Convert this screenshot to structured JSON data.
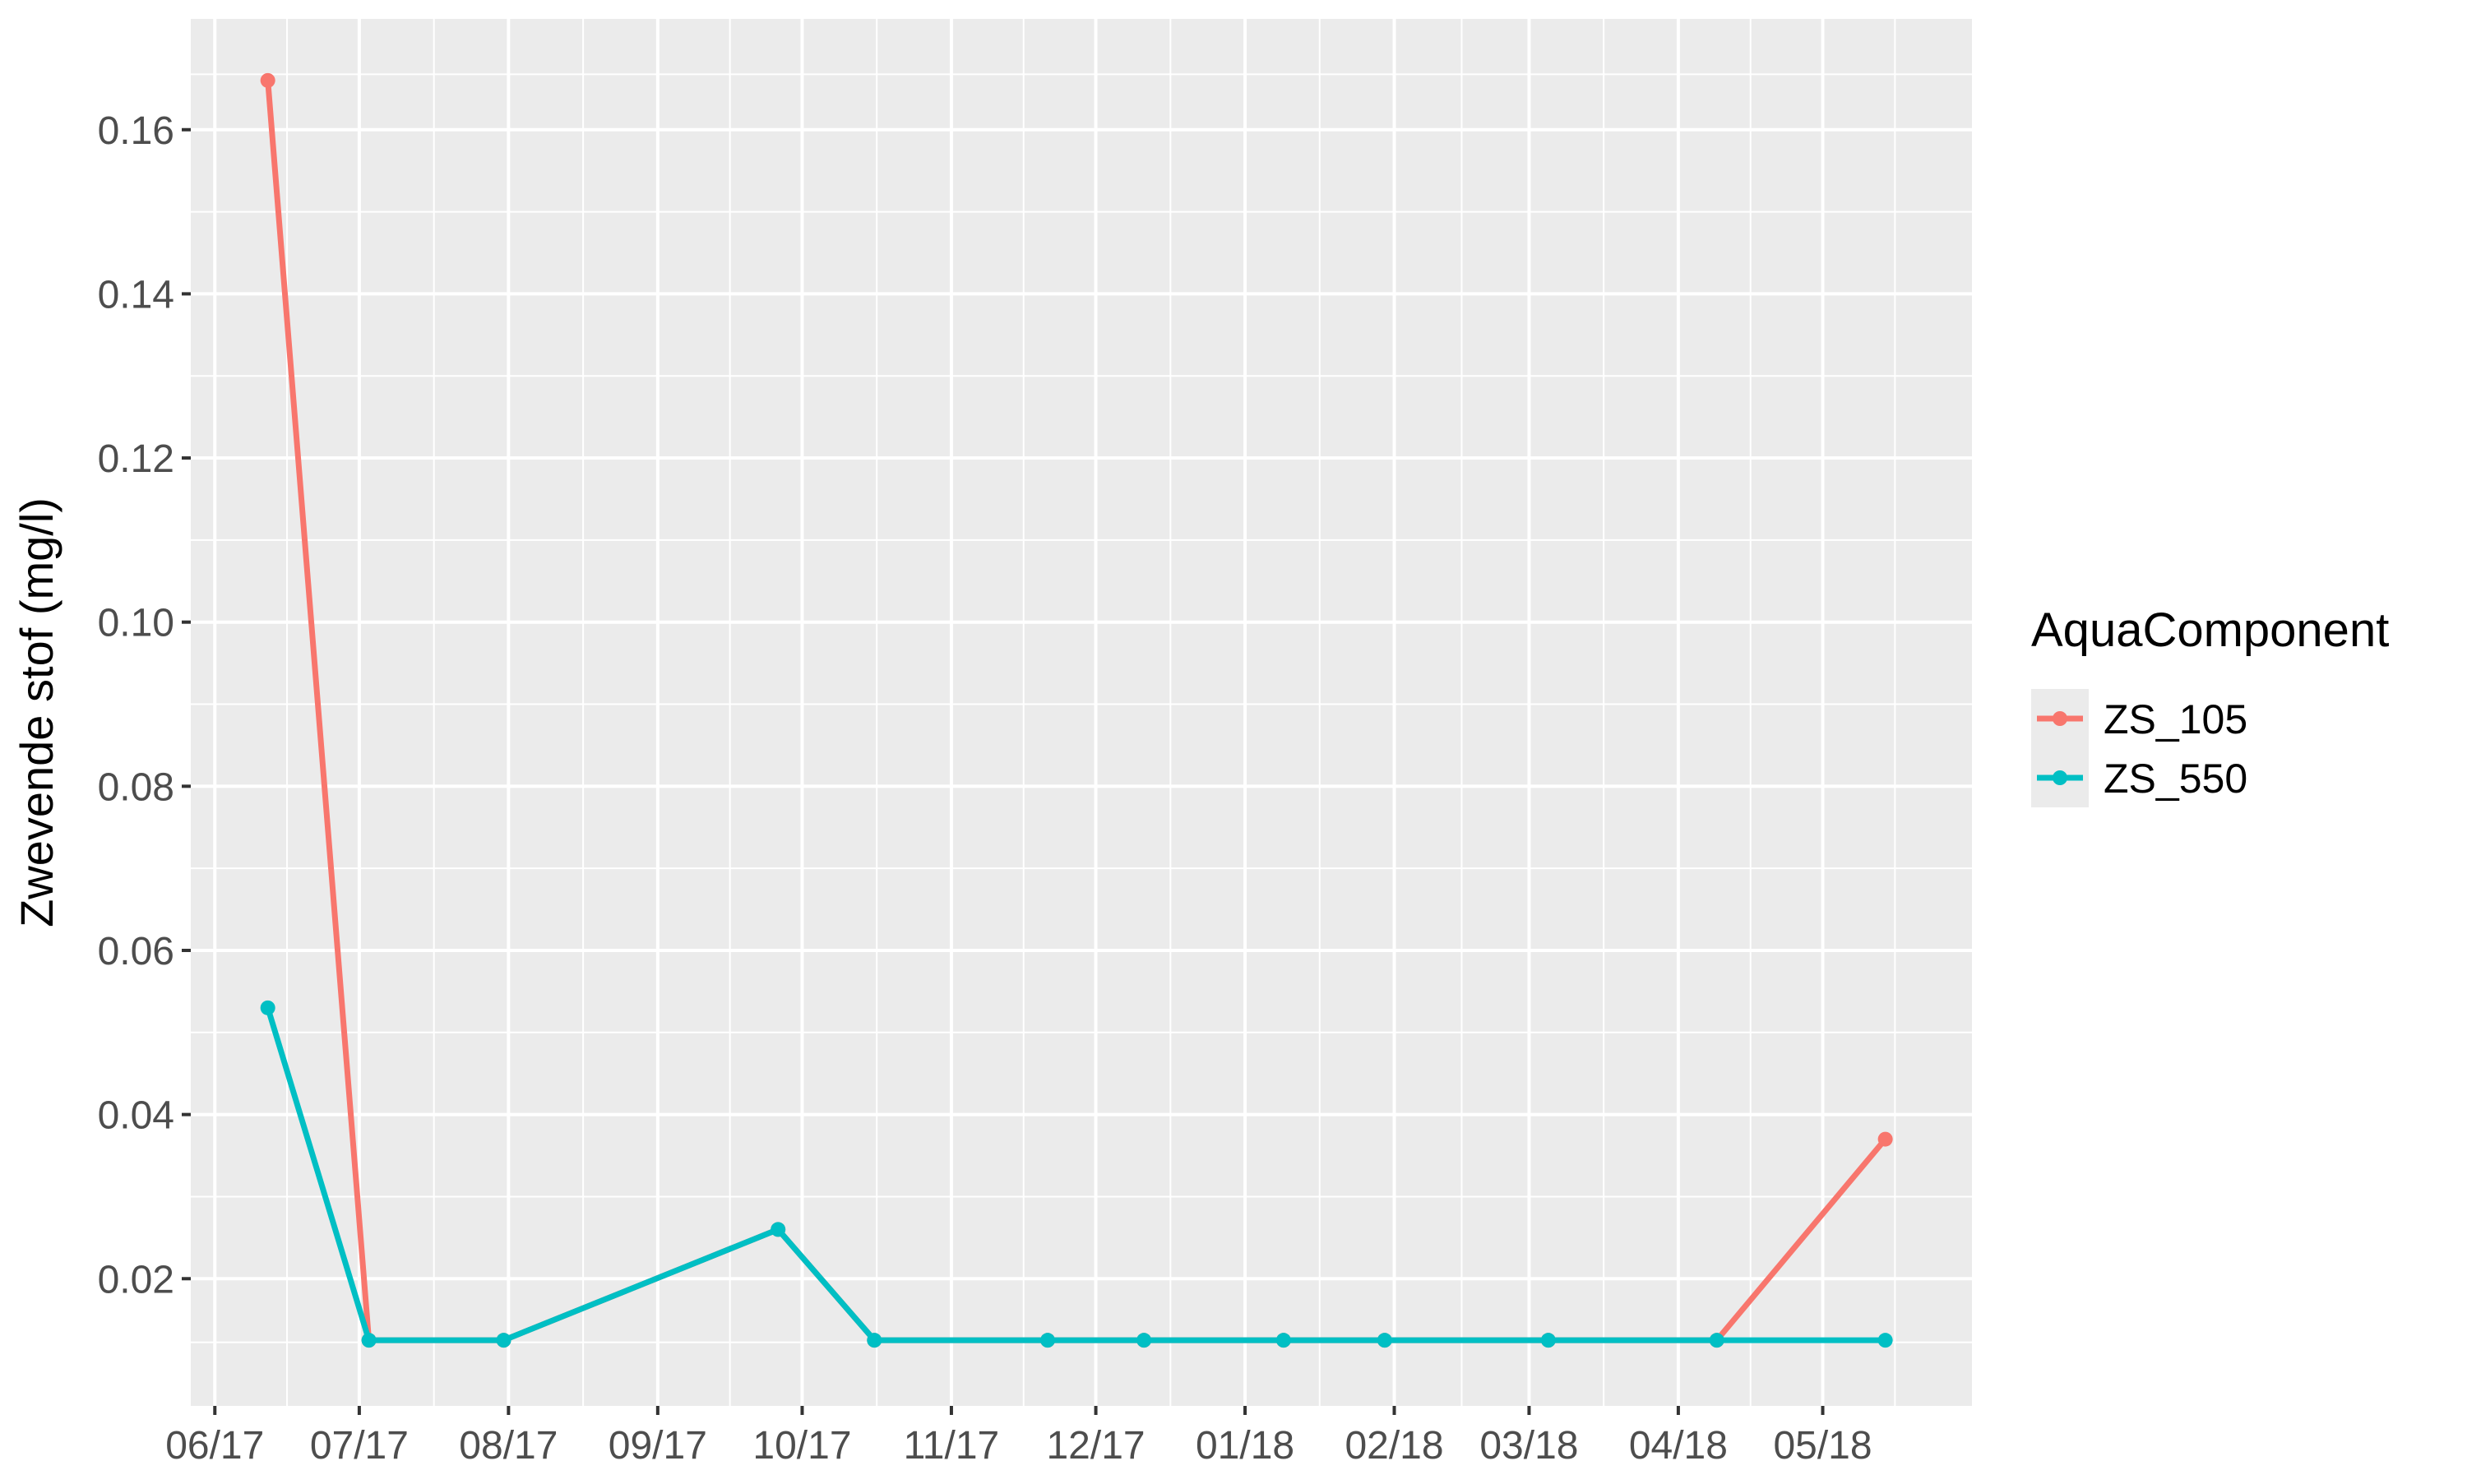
{
  "chart_data": {
    "type": "line",
    "title": "",
    "xlabel": "",
    "ylabel": "Zwevende stof (mg/l)",
    "x_tick_labels": [
      "06/17",
      "07/17",
      "08/17",
      "09/17",
      "10/17",
      "11/17",
      "12/17",
      "01/18",
      "02/18",
      "03/18",
      "04/18",
      "05/18"
    ],
    "x_ticks": [
      "2017-06-01",
      "2017-07-01",
      "2017-08-01",
      "2017-09-01",
      "2017-10-01",
      "2017-11-01",
      "2017-12-01",
      "2018-01-01",
      "2018-02-01",
      "2018-03-01",
      "2018-04-01",
      "2018-05-01"
    ],
    "y_ticks": [
      0.02,
      0.04,
      0.06,
      0.08,
      0.1,
      0.12,
      0.14,
      0.16
    ],
    "y_tick_labels": [
      "0.02",
      "0.04",
      "0.06",
      "0.08",
      "0.10",
      "0.12",
      "0.14",
      "0.16"
    ],
    "xlim": [
      "2017-05-27",
      "2018-06-01"
    ],
    "ylim": [
      0.0045,
      0.1735
    ],
    "grid": true,
    "legend": {
      "title": "AquaComponent",
      "position": "right"
    },
    "x": [
      "2017-06-12",
      "2017-07-03",
      "2017-07-31",
      "2017-09-26",
      "2017-10-16",
      "2017-11-21",
      "2017-12-11",
      "2018-01-09",
      "2018-01-30",
      "2018-03-05",
      "2018-04-09",
      "2018-05-14"
    ],
    "series": [
      {
        "name": "ZS_105",
        "color": "#F8766D",
        "values": [
          0.166,
          0.0125,
          0.0125,
          0.026,
          0.0125,
          0.0125,
          0.0125,
          0.0125,
          0.0125,
          0.0125,
          0.0125,
          0.037
        ]
      },
      {
        "name": "ZS_550",
        "color": "#00BFC4",
        "values": [
          0.053,
          0.0125,
          0.0125,
          0.026,
          0.0125,
          0.0125,
          0.0125,
          0.0125,
          0.0125,
          0.0125,
          0.0125,
          0.0125
        ]
      }
    ],
    "panel_color": "#EBEBEB",
    "grid_color": "#FFFFFF"
  }
}
